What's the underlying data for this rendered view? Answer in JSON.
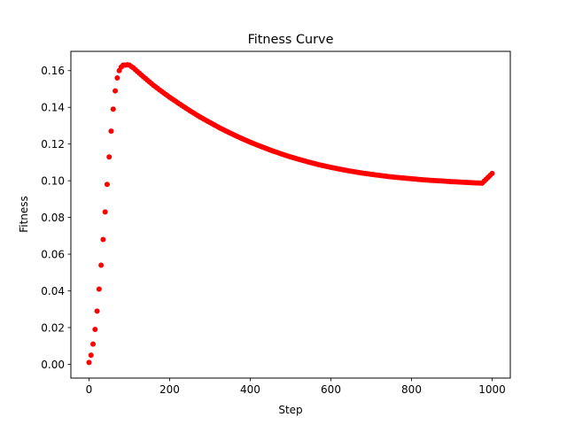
{
  "chart_data": {
    "type": "scatter",
    "title": "Fitness Curve",
    "xlabel": "Step",
    "ylabel": "Fitness",
    "xlim": [
      -45,
      1045
    ],
    "ylim": [
      -0.0075,
      0.1705
    ],
    "xticks": [
      0,
      200,
      400,
      600,
      800,
      1000
    ],
    "xtick_labels": [
      "0",
      "200",
      "400",
      "600",
      "800",
      "1000"
    ],
    "yticks": [
      0.0,
      0.02,
      0.04,
      0.06,
      0.08,
      0.1,
      0.12,
      0.14,
      0.16
    ],
    "ytick_labels": [
      "0.00",
      "0.02",
      "0.04",
      "0.06",
      "0.08",
      "0.10",
      "0.12",
      "0.14",
      "0.16"
    ],
    "grid": false,
    "marker_color": "#ff0000",
    "series": [
      {
        "x": [
          0,
          5,
          10,
          15,
          20,
          25,
          30,
          35,
          40,
          45,
          50,
          55,
          60,
          65,
          70,
          75,
          80,
          85,
          90,
          95,
          100,
          110,
          120,
          140,
          160,
          180,
          200,
          225,
          250,
          275,
          300,
          325,
          350,
          375,
          400,
          425,
          450,
          475,
          500,
          525,
          550,
          575,
          600,
          625,
          650,
          675,
          700,
          725,
          750,
          775,
          800,
          825,
          850,
          875,
          900,
          925,
          950,
          975,
          1000
        ],
        "y": [
          0.001,
          0.005,
          0.011,
          0.019,
          0.029,
          0.041,
          0.054,
          0.068,
          0.083,
          0.098,
          0.113,
          0.127,
          0.139,
          0.149,
          0.156,
          0.16,
          0.162,
          0.163,
          0.163,
          0.1632,
          0.163,
          0.1615,
          0.1595,
          0.1557,
          0.152,
          0.1487,
          0.1455,
          0.1418,
          0.1382,
          0.1348,
          0.1317,
          0.1287,
          0.126,
          0.1234,
          0.121,
          0.1188,
          0.1167,
          0.1148,
          0.113,
          0.1114,
          0.1099,
          0.1085,
          0.1073,
          0.1062,
          0.1052,
          0.1043,
          0.1035,
          0.1028,
          0.1021,
          0.1016,
          0.1011,
          0.1006,
          0.1002,
          0.0999,
          0.0995,
          0.0992,
          0.0989,
          0.0987,
          0.104
        ]
      }
    ]
  }
}
